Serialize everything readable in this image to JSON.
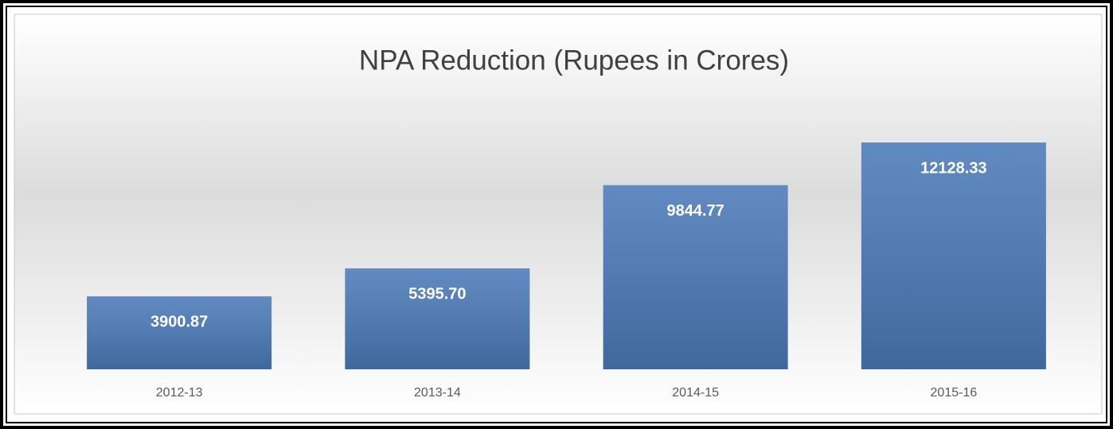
{
  "chart_data": {
    "type": "bar",
    "title": "NPA Reduction (Rupees in Crores)",
    "categories": [
      "2012-13",
      "2013-14",
      "2014-15",
      "2015-16"
    ],
    "values": [
      3900.87,
      5395.7,
      9844.77,
      12128.33
    ],
    "value_labels": [
      "3900.87",
      "5395.70",
      "9844.77",
      "12128.33"
    ],
    "color": "#4a7ab8"
  }
}
